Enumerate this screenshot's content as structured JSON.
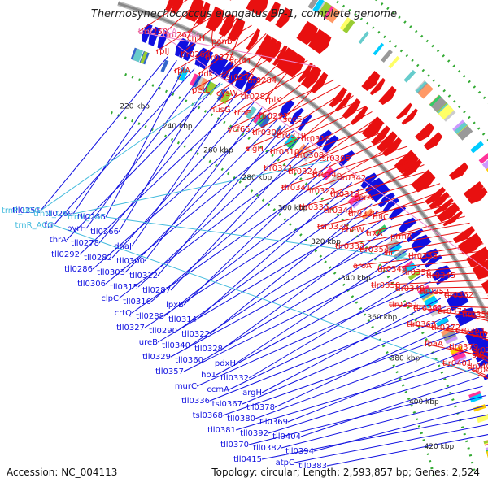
{
  "title": "Thermosynechococcus elongatus BP-1, complete genome",
  "footer": {
    "accession": "Accession: NC_004113",
    "summary": "Topology: circular; Length: 2,593,857 bp; Genes: 2,524"
  },
  "colors": {
    "forward_gene": "#e81010",
    "reverse_gene": "#1010e0",
    "trna": "#44bbdd",
    "rrna": "#ee88cc",
    "backbone": "#888888",
    "tick_dots": "#33aa33",
    "cog_palette": [
      "#00ccff",
      "#ff3399",
      "#ffcc00",
      "#99cc33",
      "#cc99ff",
      "#3366cc",
      "#ff9966",
      "#66cccc",
      "#999999",
      "#cccccc",
      "#ffff66",
      "#33cc66"
    ]
  },
  "kbp_ticks": [
    "220 kbp",
    "240 kbp",
    "260 kbp",
    "280 kbp",
    "300 kbp",
    "320 kbp",
    "340 kbp",
    "360 kbp",
    "380 kbp",
    "400 kbp",
    "420 kbp"
  ],
  "labels_forward": [
    "tlr0250",
    "tlr0261",
    "chlH",
    "panB",
    "rpIJ",
    "tlr0263",
    "tlr0273",
    "ycf41",
    "rplA",
    "ndk",
    "tsr0272",
    "tlr0284",
    "petL",
    "cysW",
    "tlr0283",
    "rplK",
    "nusG",
    "trpE",
    "tlr0291",
    "secE",
    "ycf65",
    "tlr0304",
    "tlr0319",
    "tlr0318",
    "sigH",
    "tlr0310",
    "tlr0308",
    "tsr0305",
    "tlr0311",
    "tlr0324",
    "tlr0346",
    "tlr0342",
    "tlr0341",
    "tlr0323",
    "tlr0313",
    "serA",
    "tlr0335",
    "tlr0344",
    "tlr0320",
    "thiC",
    "tsr0338",
    "cheW",
    "trxA",
    "prmA",
    "tlr0333",
    "tlr0354",
    "sir",
    "tlr0353",
    "aroA",
    "tlr0349",
    "tlr0356",
    "tlr0345",
    "tlr0350",
    "tlr0348",
    "tlr0352",
    "tlr0362",
    "tlr0351",
    "tlr0361",
    "tlr0374",
    "tlr0359",
    "tlr0363",
    "tlr0372",
    "tlr0364",
    "tsr0373",
    "fbaA",
    "tlr0379",
    "tlr0389",
    "glmU",
    "tlr0401",
    "tlr0406",
    "tlr0414"
  ],
  "labels_reverse": [
    "tll0251",
    "tll0269",
    "tll0255",
    "frr",
    "pyrH",
    "tll0266",
    "thrA",
    "tll0278",
    "dnaJ",
    "tll0292",
    "tll0282",
    "tll0300",
    "tll0286",
    "tll0303",
    "tll0312",
    "tll0306",
    "tll0315",
    "tll0287",
    "clpC",
    "tll0316",
    "lpxB",
    "crtQ",
    "tll0288",
    "tll0314",
    "tll0327",
    "tll0290",
    "tll0322",
    "ureB",
    "tll0340",
    "tll0328",
    "tll0329",
    "tll0360",
    "pdxH",
    "tll0357",
    "ho1",
    "tll0332",
    "murC",
    "ccmA",
    "argH",
    "tll0336",
    "tsl0367",
    "tll0378",
    "tsl0368",
    "tll0380",
    "tll0369",
    "tll0381",
    "tll0392",
    "tll0404",
    "tll0370",
    "tll0382",
    "tll0394",
    "tll0415",
    "atpC",
    "tll0383"
  ],
  "labels_trna": [
    "trnP_UGG",
    "trnM_CAU",
    "trnV_UAC",
    "trnR_ACG"
  ],
  "labels_rrna": [
    "trnC_GCA",
    "trnL_CAA"
  ]
}
